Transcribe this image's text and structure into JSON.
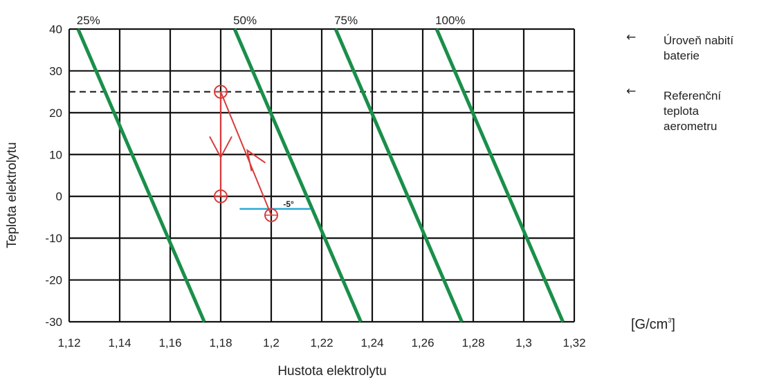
{
  "chart_data": {
    "type": "line",
    "xlabel": "Hustota elektrolytu",
    "ylabel": "Teplota elektrolytu",
    "xlim": [
      1.12,
      1.32
    ],
    "ylim": [
      -30,
      40
    ],
    "x_ticks": [
      1.12,
      1.14,
      1.16,
      1.18,
      1.2,
      1.22,
      1.24,
      1.26,
      1.28,
      1.3,
      1.32
    ],
    "x_tick_labels": [
      "1,12",
      "1,14",
      "1,16",
      "1,18",
      "1,2",
      "1,22",
      "1,24",
      "1,26",
      "1,28",
      "1,3",
      "1,32"
    ],
    "y_ticks": [
      -30,
      -20,
      -10,
      0,
      10,
      20,
      30,
      40
    ],
    "y_tick_labels": [
      "-30",
      "-20",
      "-10",
      "0",
      "10",
      "20",
      "30",
      "40"
    ],
    "grid": true,
    "series": [
      {
        "name": "25%",
        "color": "#1a8f4a",
        "points": [
          [
            1.1235,
            40
          ],
          [
            1.1735,
            -30
          ]
        ]
      },
      {
        "name": "50%",
        "color": "#1a8f4a",
        "points": [
          [
            1.1855,
            40
          ],
          [
            1.2355,
            -30
          ]
        ]
      },
      {
        "name": "75%",
        "color": "#1a8f4a",
        "points": [
          [
            1.2255,
            40
          ],
          [
            1.2755,
            -30
          ]
        ]
      },
      {
        "name": "100%",
        "color": "#1a8f4a",
        "points": [
          [
            1.2655,
            40
          ],
          [
            1.3155,
            -30
          ]
        ]
      }
    ],
    "reference_line": {
      "y": 25,
      "style": "dashed",
      "color": "#111111"
    },
    "cold_marker": {
      "y": -3,
      "x_range": [
        1.1875,
        1.2155
      ],
      "color": "#2aa7d6",
      "label": "-5°"
    },
    "example_path": {
      "color": "#d83a3a",
      "circles": [
        [
          1.18,
          25
        ],
        [
          1.18,
          0
        ],
        [
          1.2,
          -4.5
        ]
      ],
      "segments": [
        [
          [
            1.18,
            25
          ],
          [
            1.18,
            0
          ]
        ],
        [
          [
            1.2,
            -4.5
          ],
          [
            1.18,
            25
          ]
        ]
      ],
      "arrowheads": [
        {
          "at": [
            1.18,
            10
          ],
          "direction": "down"
        },
        {
          "at": [
            1.19,
            10
          ],
          "direction": "up-left"
        }
      ]
    }
  },
  "annotations": {
    "charge_level": {
      "arrow": "←",
      "text": "Úroveň nabití baterie"
    },
    "reference_temp": {
      "arrow": "←",
      "text": "Referenční teplota aerometru"
    },
    "unit": {
      "base": "[G/cm",
      "sup": "3",
      "close": "]"
    }
  }
}
